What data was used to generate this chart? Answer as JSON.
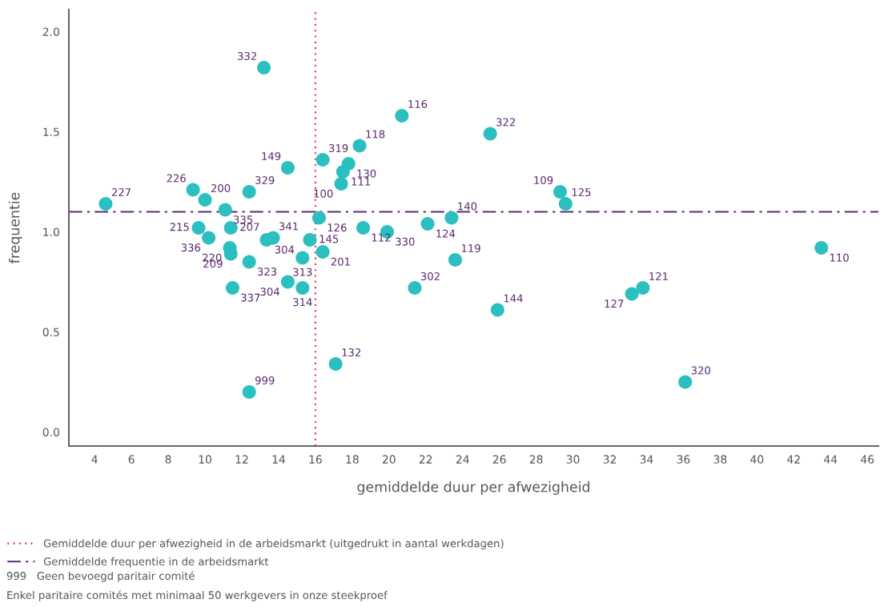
{
  "chart_data": {
    "type": "scatter",
    "xlabel": "gemiddelde duur per afwezigheid",
    "ylabel": "frequentie",
    "xlim": [
      2.6,
      46.6
    ],
    "ylim": [
      -0.07,
      2.11
    ],
    "xticks": [
      4,
      6,
      8,
      10,
      12,
      14,
      16,
      18,
      20,
      22,
      24,
      26,
      28,
      30,
      32,
      34,
      36,
      38,
      40,
      42,
      44,
      46
    ],
    "yticks": [
      {
        "value": 0,
        "label": "0.0"
      },
      {
        "value": 0.5,
        "label": "0.5"
      },
      {
        "value": 1,
        "label": "1.0"
      },
      {
        "value": 1.5,
        "label": "1.5"
      },
      {
        "value": 2,
        "label": "2.0"
      }
    ],
    "grid": false,
    "marker": "circle",
    "legend": "bottom left",
    "series": [
      {
        "color": "#2bbfc0",
        "x": [
          13.2,
          20.7,
          25.5,
          18.4,
          16.4,
          17.8,
          14.5,
          17.5,
          17.4,
          9.35,
          29.3,
          12.4,
          29.6,
          10.0,
          4.6,
          11.1,
          23.4,
          16.2,
          22.1,
          9.65,
          11.4,
          18.6,
          19.9,
          10.2,
          13.7,
          13.35,
          15.7,
          11.35,
          11.4,
          16.4,
          15.3,
          23.6,
          12.4,
          14.5,
          15.3,
          11.5,
          21.4,
          25.9,
          33.8,
          33.2,
          43.5,
          17.1,
          12.4,
          36.1
        ],
        "values": [
          1.82,
          1.58,
          1.49,
          1.43,
          1.36,
          1.34,
          1.32,
          1.3,
          1.24,
          1.21,
          1.2,
          1.2,
          1.14,
          1.16,
          1.14,
          1.11,
          1.07,
          1.07,
          1.04,
          1.02,
          1.02,
          1.02,
          1.0,
          0.97,
          0.97,
          0.96,
          0.96,
          0.92,
          0.89,
          0.9,
          0.87,
          0.86,
          0.85,
          0.75,
          0.72,
          0.72,
          0.72,
          0.61,
          0.72,
          0.69,
          0.92,
          0.34,
          0.2,
          0.25
        ]
      }
    ],
    "ref_lines": [
      {
        "axis": "x",
        "value": 16,
        "label": "Gemiddelde duur per afwezigheid in de arbeidsmarkt (uitgedrukt in aantal werkdagen)",
        "color": "#e8344a",
        "line_style": "dotted"
      },
      {
        "axis": "y",
        "value": 1.1,
        "label": "Gemiddelde frequentie in de arbeidsmarkt",
        "color": "#5b2a6e",
        "line_style": "dashdot"
      }
    ],
    "annotations": [
      {
        "text": "332",
        "x": 13.2,
        "y": 1.82
      },
      {
        "text": "116",
        "x": 20.7,
        "y": 1.58
      },
      {
        "text": "322",
        "x": 25.5,
        "y": 1.49
      },
      {
        "text": "118",
        "x": 18.4,
        "y": 1.43
      },
      {
        "text": "319",
        "x": 16.4,
        "y": 1.36
      },
      {
        "text": "130",
        "x": 17.8,
        "y": 1.34
      },
      {
        "text": "149",
        "x": 14.5,
        "y": 1.32
      },
      {
        "text": "111",
        "x": 17.5,
        "y": 1.3
      },
      {
        "text": "100",
        "x": 17.4,
        "y": 1.24
      },
      {
        "text": "226",
        "x": 9.35,
        "y": 1.21
      },
      {
        "text": "109",
        "x": 29.3,
        "y": 1.2
      },
      {
        "text": "329",
        "x": 12.4,
        "y": 1.2
      },
      {
        "text": "125",
        "x": 29.6,
        "y": 1.14
      },
      {
        "text": "200",
        "x": 10.0,
        "y": 1.16
      },
      {
        "text": "227",
        "x": 4.6,
        "y": 1.14
      },
      {
        "text": "335",
        "x": 11.1,
        "y": 1.11
      },
      {
        "text": "140",
        "x": 23.4,
        "y": 1.07
      },
      {
        "text": "126",
        "x": 16.2,
        "y": 1.07
      },
      {
        "text": "124",
        "x": 22.1,
        "y": 1.04
      },
      {
        "text": "215",
        "x": 9.65,
        "y": 1.02
      },
      {
        "text": "207",
        "x": 11.4,
        "y": 1.02
      },
      {
        "text": "112",
        "x": 18.6,
        "y": 1.02
      },
      {
        "text": "330",
        "x": 19.9,
        "y": 1.0
      },
      {
        "text": "336",
        "x": 10.2,
        "y": 0.97
      },
      {
        "text": "341",
        "x": 13.7,
        "y": 0.97
      },
      {
        "text": "304",
        "x": 13.35,
        "y": 0.96
      },
      {
        "text": "145",
        "x": 15.7,
        "y": 0.96
      },
      {
        "text": "220",
        "x": 11.35,
        "y": 0.92
      },
      {
        "text": "209",
        "x": 11.4,
        "y": 0.89
      },
      {
        "text": "201",
        "x": 16.4,
        "y": 0.9
      },
      {
        "text": "313",
        "x": 15.3,
        "y": 0.87
      },
      {
        "text": "119",
        "x": 23.6,
        "y": 0.86
      },
      {
        "text": "323",
        "x": 12.4,
        "y": 0.85
      },
      {
        "text": "304",
        "x": 14.5,
        "y": 0.75
      },
      {
        "text": "314",
        "x": 15.3,
        "y": 0.72
      },
      {
        "text": "337",
        "x": 11.5,
        "y": 0.72
      },
      {
        "text": "302",
        "x": 21.4,
        "y": 0.72
      },
      {
        "text": "144",
        "x": 25.9,
        "y": 0.61
      },
      {
        "text": "121",
        "x": 33.8,
        "y": 0.72
      },
      {
        "text": "127",
        "x": 33.2,
        "y": 0.69
      },
      {
        "text": "110",
        "x": 43.5,
        "y": 0.92
      },
      {
        "text": "132",
        "x": 17.1,
        "y": 0.34
      },
      {
        "text": "999",
        "x": 12.4,
        "y": 0.2
      },
      {
        "text": "320",
        "x": 36.1,
        "y": 0.25
      },
      "999   Geen bevoegd paritair comité",
      "Enkel paritaire comités met minimaal 50 werkgevers in onze steekproef"
    ]
  }
}
